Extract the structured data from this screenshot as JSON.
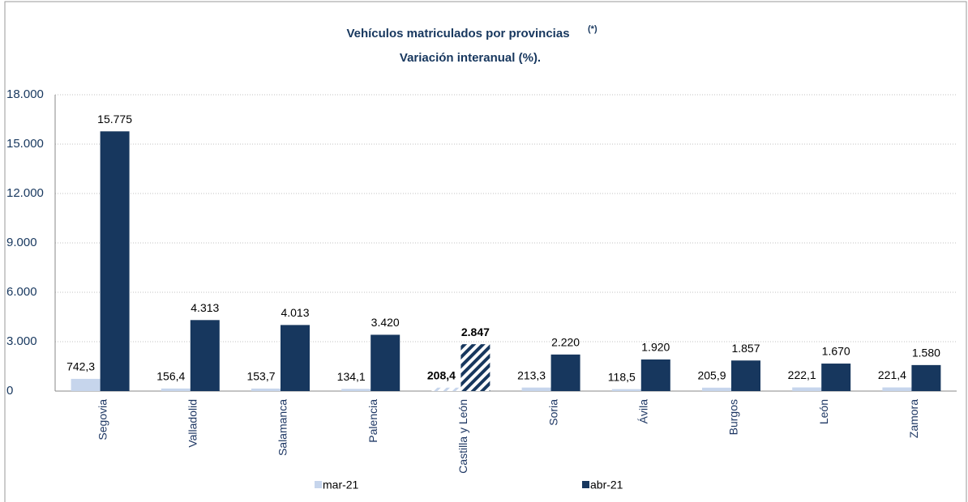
{
  "chart_data": {
    "type": "bar",
    "title": "Vehículos matriculados por provincias",
    "title_note": "(*)",
    "subtitle": "Variación interanual (%).",
    "categories": [
      "Segovia",
      "Valladolid",
      "Salamanca",
      "Palencia",
      "Castilla y León",
      "Soria",
      "Ávila",
      "Burgos",
      "León",
      "Zamora"
    ],
    "series": [
      {
        "name": "mar-21",
        "color": "#c6d5ec",
        "values": [
          742.3,
          156.4,
          153.7,
          134.1,
          208.4,
          213.3,
          118.5,
          205.9,
          222.1,
          221.4
        ],
        "value_labels": [
          "742,3",
          "156,4",
          "153,7",
          "134,1",
          "208,4",
          "213,3",
          "118,5",
          "205,9",
          "222,1",
          "221,4"
        ]
      },
      {
        "name": "abr-21",
        "color": "#17375e",
        "values": [
          15775,
          4313,
          4013,
          3420,
          2847,
          2220,
          1920,
          1857,
          1670,
          1580
        ],
        "value_labels": [
          "15.775",
          "4.313",
          "4.013",
          "3.420",
          "2.847",
          "2.220",
          "1.920",
          "1.857",
          "1.670",
          "1.580"
        ]
      }
    ],
    "hatched": 4,
    "ylim": [
      0,
      18000
    ],
    "yticks": [
      0,
      {
        "value": 3000,
        "label": "3.000"
      },
      {
        "value": 6000,
        "label": "6.000"
      },
      {
        "value": 9000,
        "label": "9.000"
      },
      {
        "value": 12000,
        "label": "12.000"
      },
      {
        "value": 15000,
        "label": "15.000"
      },
      {
        "value": 18000,
        "label": "18.000"
      }
    ],
    "grid": true,
    "legend": "bottom"
  }
}
